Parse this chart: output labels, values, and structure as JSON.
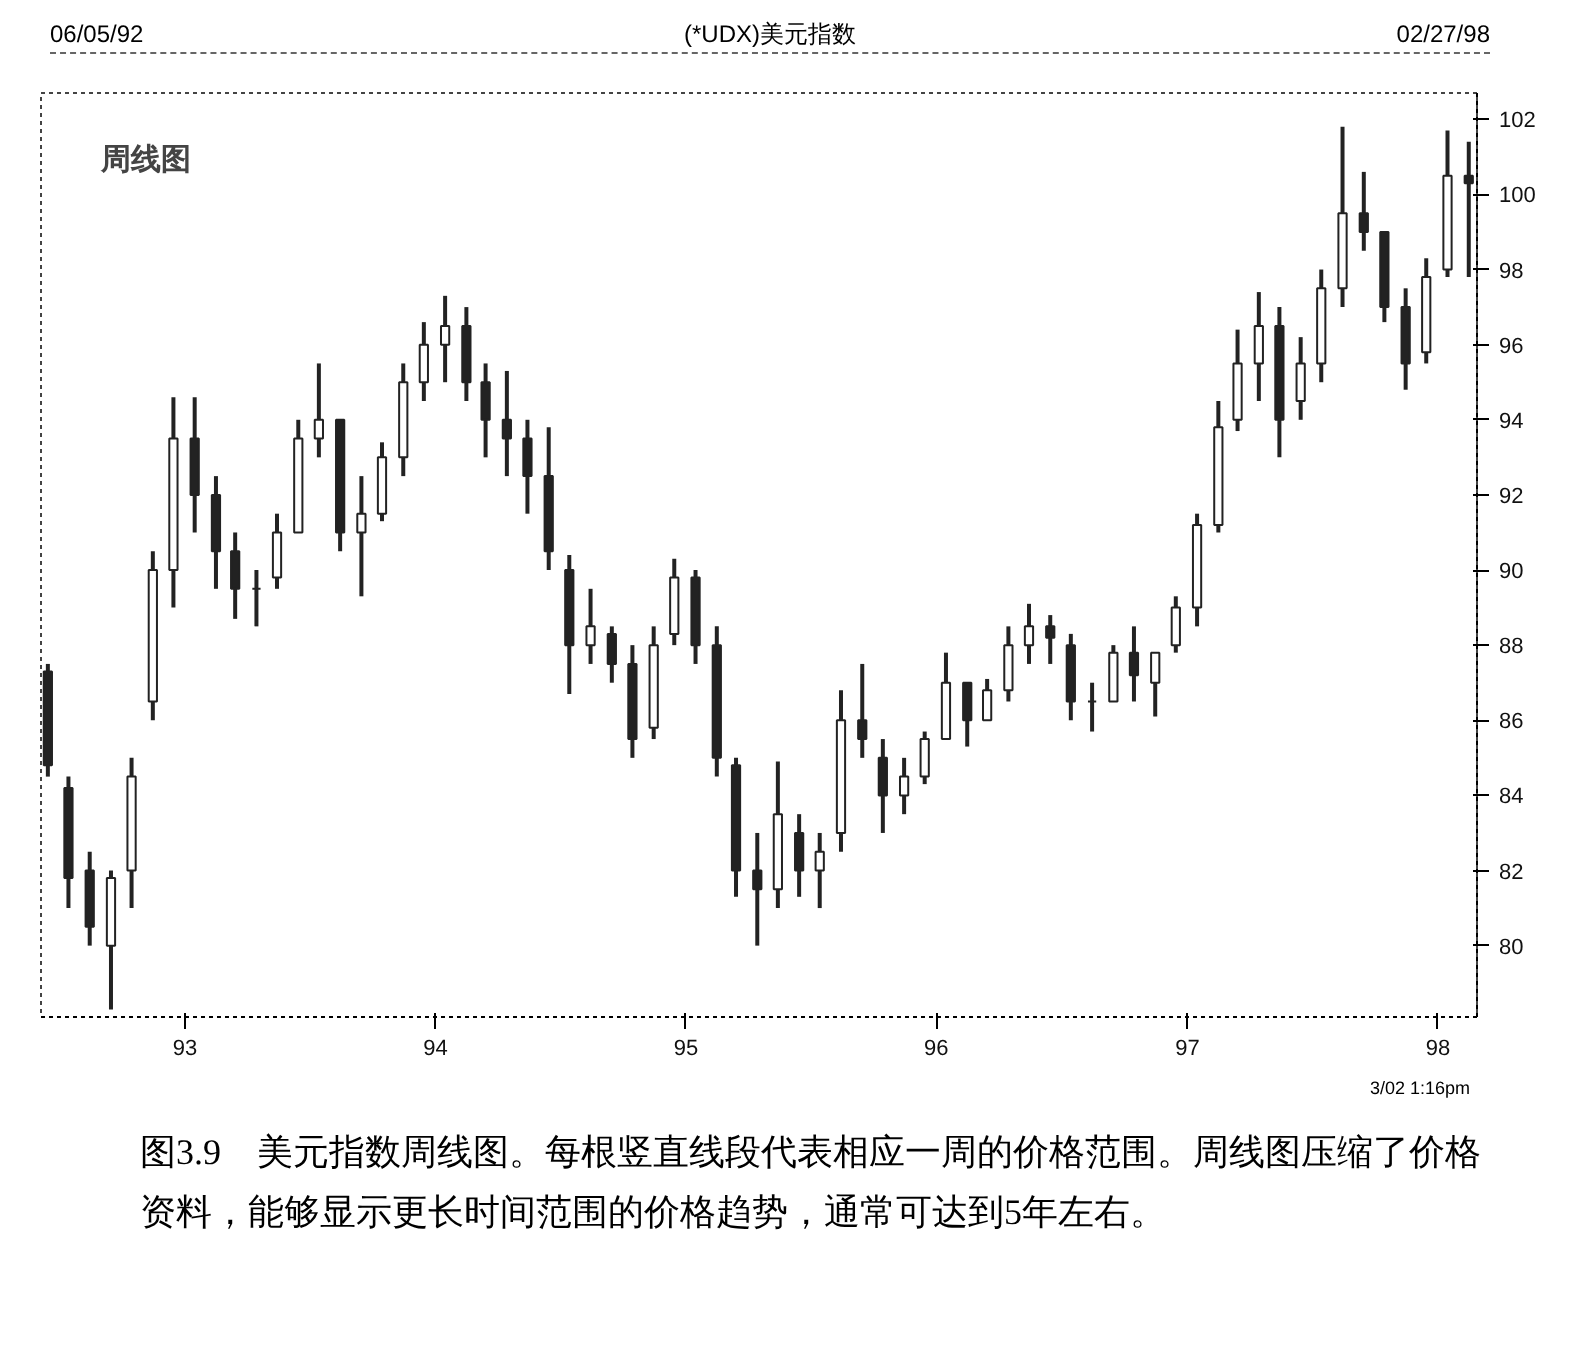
{
  "chart_data": {
    "type": "candlestick",
    "title": "(*UDX)美元指数",
    "annotations": [
      "06/05/92",
      "02/27/98",
      "周线图",
      "3/02 1:16pm",
      "图3.9　美元指数周线图。每根竖直线段代表相应一周的价格范围。周线图压缩了价格资料，能够显示更长时间范围的价格趋势，通常可达到5年左右。"
    ],
    "color": "#222222",
    "x": [
      "1992-06-15",
      "1992-07-15",
      "1992-08-15",
      "1992-09-15",
      "1992-10-15",
      "1992-11-15",
      "1992-12-15",
      "1993-01-15",
      "1993-02-15",
      "1993-03-15",
      "1993-04-15",
      "1993-05-15",
      "1993-06-15",
      "1993-07-15",
      "1993-08-15",
      "1993-09-15",
      "1993-10-15",
      "1993-11-15",
      "1993-12-15",
      "1994-01-15",
      "1994-02-15",
      "1994-03-15",
      "1994-04-15",
      "1994-05-15",
      "1994-06-15",
      "1994-07-15",
      "1994-08-15",
      "1994-09-15",
      "1994-10-15",
      "1994-11-15",
      "1994-12-15",
      "1995-01-15",
      "1995-02-15",
      "1995-03-15",
      "1995-04-15",
      "1995-05-15",
      "1995-06-15",
      "1995-07-15",
      "1995-08-15",
      "1995-09-15",
      "1995-10-15",
      "1995-11-15",
      "1995-12-15",
      "1996-01-15",
      "1996-02-15",
      "1996-03-15",
      "1996-04-15",
      "1996-05-15",
      "1996-06-15",
      "1996-07-15",
      "1996-08-15",
      "1996-09-15",
      "1996-10-15",
      "1996-11-15",
      "1996-12-15",
      "1997-01-15",
      "1997-02-15",
      "1997-03-15",
      "1997-04-15",
      "1997-05-15",
      "1997-06-15",
      "1997-07-15",
      "1997-08-15",
      "1997-09-15",
      "1997-10-15",
      "1997-11-15",
      "1997-12-15",
      "1998-01-15",
      "1998-02-15"
    ],
    "ohlc": [
      [
        87.3,
        87.5,
        84.5,
        84.8
      ],
      [
        84.2,
        84.5,
        81,
        81.8
      ],
      [
        82,
        82.5,
        80,
        80.5
      ],
      [
        80,
        82,
        78.3,
        81.8
      ],
      [
        82,
        85,
        81,
        84.5
      ],
      [
        86.5,
        90.5,
        86,
        90
      ],
      [
        90,
        94.6,
        89,
        93.5
      ],
      [
        93.5,
        94.6,
        91,
        92
      ],
      [
        92,
        92.5,
        89.5,
        90.5
      ],
      [
        90.5,
        91,
        88.7,
        89.5
      ],
      [
        89.5,
        90,
        88.5,
        89.5
      ],
      [
        89.8,
        91.5,
        89.5,
        91
      ],
      [
        91,
        94,
        91,
        93.5
      ],
      [
        93.5,
        95.5,
        93,
        94
      ],
      [
        94,
        94,
        90.5,
        91
      ],
      [
        91,
        92.5,
        89.3,
        91.5
      ],
      [
        91.5,
        93.4,
        91.3,
        93
      ],
      [
        93,
        95.5,
        92.5,
        95
      ],
      [
        95,
        96.6,
        94.5,
        96
      ],
      [
        96,
        97.3,
        95,
        96.5
      ],
      [
        96.5,
        97,
        94.5,
        95
      ],
      [
        95,
        95.5,
        93,
        94
      ],
      [
        94,
        95.3,
        92.5,
        93.5
      ],
      [
        93.5,
        94,
        91.5,
        92.5
      ],
      [
        92.5,
        93.8,
        90,
        90.5
      ],
      [
        90,
        90.4,
        86.7,
        88
      ],
      [
        88,
        89.5,
        87.5,
        88.5
      ],
      [
        88.3,
        88.5,
        87,
        87.5
      ],
      [
        87.5,
        88,
        85,
        85.5
      ],
      [
        85.8,
        88.5,
        85.5,
        88
      ],
      [
        88.3,
        90.3,
        88,
        89.8
      ],
      [
        89.8,
        90,
        87.5,
        88
      ],
      [
        88,
        88.5,
        84.5,
        85
      ],
      [
        84.8,
        85,
        81.3,
        82
      ],
      [
        82,
        83,
        80,
        81.5
      ],
      [
        81.5,
        84.9,
        81,
        83.5
      ],
      [
        83,
        83.5,
        81.3,
        82
      ],
      [
        82,
        83,
        81,
        82.5
      ],
      [
        83,
        86.8,
        82.5,
        86
      ],
      [
        86,
        87.5,
        85,
        85.5
      ],
      [
        85,
        85.5,
        83,
        84
      ],
      [
        84,
        85,
        83.5,
        84.5
      ],
      [
        84.5,
        85.7,
        84.3,
        85.5
      ],
      [
        85.5,
        87.8,
        85.5,
        87
      ],
      [
        87,
        87,
        85.3,
        86
      ],
      [
        86,
        87.1,
        86,
        86.8
      ],
      [
        86.8,
        88.5,
        86.5,
        88
      ],
      [
        88,
        89.1,
        87.5,
        88.5
      ],
      [
        88.5,
        88.8,
        87.5,
        88.2
      ],
      [
        88,
        88.3,
        86,
        86.5
      ],
      [
        86.5,
        87,
        85.7,
        86.5
      ],
      [
        86.5,
        88,
        86.5,
        87.8
      ],
      [
        87.8,
        88.5,
        86.5,
        87.2
      ],
      [
        87,
        87.8,
        86.1,
        87.8
      ],
      [
        88,
        89.3,
        87.8,
        89
      ],
      [
        89,
        91.5,
        88.5,
        91.2
      ],
      [
        91.2,
        94.5,
        91,
        93.8
      ],
      [
        94,
        96.4,
        93.7,
        95.5
      ],
      [
        95.5,
        97.4,
        94.5,
        96.5
      ],
      [
        96.5,
        97,
        93,
        94
      ],
      [
        94.5,
        96.2,
        94,
        95.5
      ],
      [
        95.5,
        98,
        95,
        97.5
      ],
      [
        97.5,
        101.8,
        97,
        99.5
      ],
      [
        99.5,
        100.6,
        98.5,
        99
      ],
      [
        99,
        99,
        96.6,
        97
      ],
      [
        97,
        97.5,
        94.8,
        95.5
      ],
      [
        95.8,
        98.3,
        95.5,
        97.8
      ],
      [
        98,
        101.7,
        97.8,
        100.5
      ],
      [
        100.5,
        101.4,
        97.8,
        100.3
      ]
    ],
    "xlim": [
      "1992-06-05",
      "1998-02-27"
    ],
    "xticks": [
      {
        "value": "1993-01-01",
        "label": "93"
      },
      {
        "value": "1994-01-01",
        "label": "94"
      },
      {
        "value": "1995-01-01",
        "label": "95"
      },
      {
        "value": "1996-01-01",
        "label": "96"
      },
      {
        "value": "1997-01-01",
        "label": "97"
      },
      {
        "value": "1998-01-01",
        "label": "98"
      }
    ],
    "ylim": [
      78.1,
      102.7
    ],
    "yticks": [
      80,
      82,
      84,
      86,
      88,
      90,
      92,
      94,
      96,
      98,
      100,
      102
    ]
  }
}
